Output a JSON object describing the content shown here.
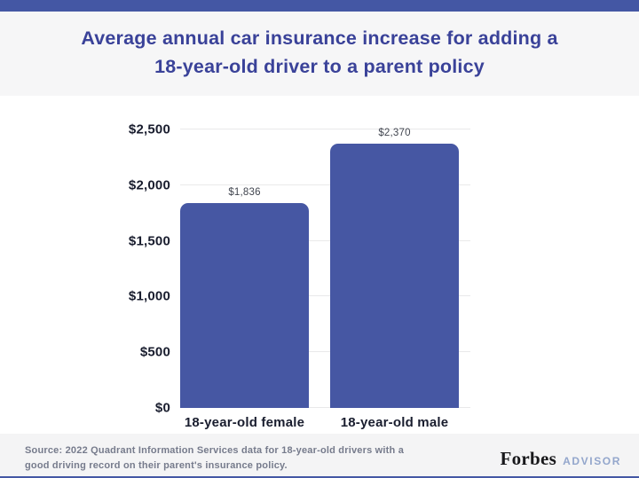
{
  "header": {
    "title_line1": "Average annual car insurance increase for adding a",
    "title_line2": "18-year-old driver to a parent policy"
  },
  "chart_data": {
    "type": "bar",
    "title": "Average annual car insurance increase for adding a 18-year-old driver to a parent policy",
    "categories": [
      "18-year-old female",
      "18-year-old male"
    ],
    "values": [
      1836,
      2370
    ],
    "value_labels": [
      "$1,836",
      "$2,370"
    ],
    "y_tick_values": [
      0,
      500,
      1000,
      1500,
      2000,
      2500
    ],
    "y_tick_labels": [
      "$0",
      "$500",
      "$1,000",
      "$1,500",
      "$2,000",
      "$2,500"
    ],
    "ylim": [
      0,
      2500
    ],
    "xlabel": "",
    "ylabel": "",
    "grid": true,
    "legend": "none",
    "bar_color": "#4657a3"
  },
  "footer": {
    "source_line1": "Source: 2022 Quadrant Information Services data for 18-year-old drivers with a",
    "source_line2": "good driving record on their parent's insurance policy.",
    "logo_primary": "Forbes",
    "logo_secondary": "ADVISOR"
  },
  "colors": {
    "accent_blue": "#4457a4",
    "title_blue": "#3a4299",
    "axis_text": "#191d2e",
    "muted_text": "#767b8c",
    "advisor_text": "#93a6cc",
    "header_bg": "#f6f6f7",
    "footer_bg": "#f4f4f5",
    "gridline": "#e9e9ea"
  }
}
